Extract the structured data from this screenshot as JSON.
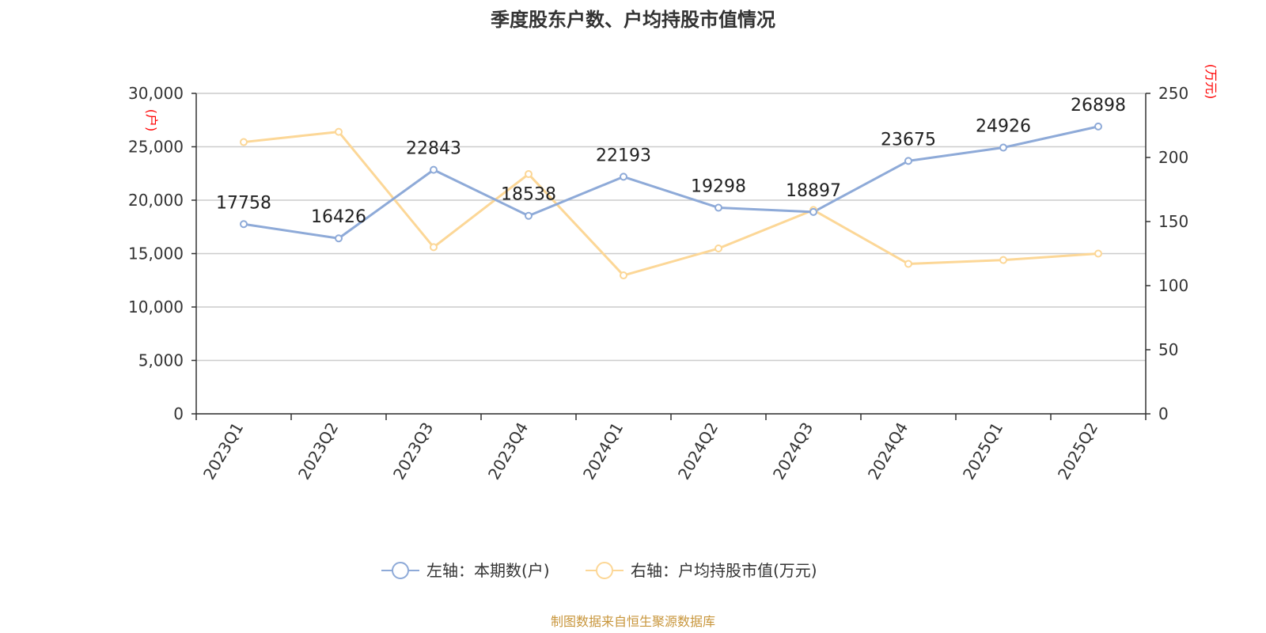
{
  "chart_data": {
    "type": "line",
    "title": "季度股东户数、户均持股市值情况",
    "categories": [
      "2023Q1",
      "2023Q2",
      "2023Q3",
      "2023Q4",
      "2024Q1",
      "2024Q2",
      "2024Q3",
      "2024Q4",
      "2025Q1",
      "2025Q2"
    ],
    "left_axis": {
      "unit": "(户)",
      "ylim": [
        0,
        30000
      ],
      "ticks": [
        0,
        5000,
        10000,
        15000,
        20000,
        25000,
        30000
      ],
      "tick_labels": [
        "0",
        "5,000",
        "10,000",
        "15,000",
        "20,000",
        "25,000",
        "30,000"
      ]
    },
    "right_axis": {
      "unit": "(万元)",
      "ylim": [
        0,
        250
      ],
      "ticks": [
        0,
        50,
        100,
        150,
        200,
        250
      ],
      "tick_labels": [
        "0",
        "50",
        "100",
        "150",
        "200",
        "250"
      ]
    },
    "series": [
      {
        "name": "左轴：本期数(户)",
        "axis": "left",
        "color": "#8eaad8",
        "values": [
          17758,
          16426,
          22843,
          18538,
          22193,
          19298,
          18897,
          23675,
          24926,
          26898
        ],
        "labels": [
          "17758",
          "16426",
          "22843",
          "18538",
          "22193",
          "19298",
          "18897",
          "23675",
          "24926",
          "26898"
        ]
      },
      {
        "name": "右轴：户均持股市值(万元)",
        "axis": "right",
        "color": "#fcd797",
        "values": [
          212,
          220,
          130,
          187,
          108,
          129,
          159,
          117,
          120,
          125
        ]
      }
    ],
    "grid": true,
    "legend_position": "bottom",
    "source": "制图数据来自恒生聚源数据库"
  }
}
